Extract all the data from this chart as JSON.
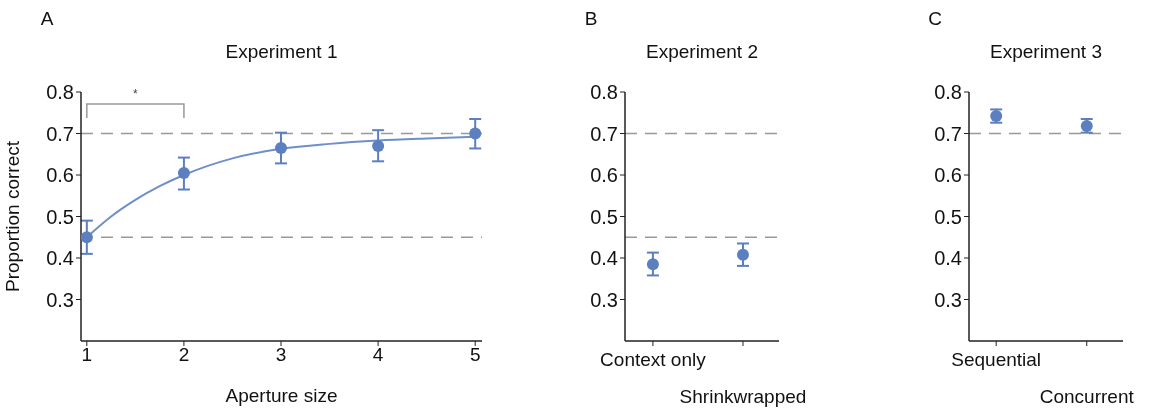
{
  "chart_data": [
    {
      "type": "scatter",
      "title": "Experiment 1",
      "xlabel": "Aperture size",
      "ylabel": "Proportion correct",
      "x": [
        1,
        2,
        3,
        4,
        5
      ],
      "xlim": [
        0.94,
        5.07
      ],
      "xticks": [
        1,
        2,
        3,
        4,
        5
      ],
      "ylim": [
        0.2,
        0.8
      ],
      "yticks": [
        0.3,
        0.4,
        0.5,
        0.6,
        0.7,
        0.8
      ],
      "series": [
        {
          "marker": "circle",
          "color": "#5b7fbf",
          "values": [
            0.45,
            0.605,
            0.665,
            0.67,
            0.7
          ],
          "errors": [
            [
              0.41,
              0.49
            ],
            [
              0.565,
              0.642
            ],
            [
              0.628,
              0.702
            ],
            [
              0.633,
              0.708
            ],
            [
              0.664,
              0.735
            ]
          ]
        },
        {
          "type": "line",
          "color": "#6f8fc8",
          "x": [
            1,
            1.25,
            1.5,
            1.75,
            2,
            2.5,
            3,
            3.5,
            4,
            4.5,
            5
          ],
          "values": [
            0.45,
            0.5,
            0.54,
            0.573,
            0.6,
            0.64,
            0.663,
            0.675,
            0.683,
            0.688,
            0.692
          ]
        }
      ],
      "ref_lines": [
        {
          "axis": "y",
          "value": 0.45,
          "color": "#999999",
          "line_style": "dashed"
        },
        {
          "axis": "y",
          "value": 0.7,
          "color": "#999999",
          "line_style": "dashed"
        }
      ],
      "annotations": [
        "A",
        "*"
      ]
    },
    {
      "type": "scatter",
      "title": "Experiment 2",
      "marker": "circle",
      "categories": [
        "Context only",
        "Shrinkwrapped"
      ],
      "ylim": [
        0.2,
        0.8
      ],
      "yticks": [
        0.3,
        0.4,
        0.5,
        0.6,
        0.7,
        0.8
      ],
      "series": [
        {
          "color": "#5b7fbf",
          "values": [
            0.385,
            0.408
          ],
          "errors": [
            [
              0.358,
              0.413
            ],
            [
              0.381,
              0.435
            ]
          ]
        }
      ],
      "ref_lines": [
        {
          "axis": "y",
          "value": 0.45,
          "color": "#999999",
          "line_style": "dashed"
        },
        {
          "axis": "y",
          "value": 0.7,
          "color": "#999999",
          "line_style": "dashed"
        }
      ],
      "annotations": [
        "B"
      ]
    },
    {
      "type": "scatter",
      "title": "Experiment 3",
      "marker": "circle",
      "categories": [
        "Sequential",
        "Concurrent"
      ],
      "ylim": [
        0.2,
        0.8
      ],
      "yticks": [
        0.3,
        0.4,
        0.5,
        0.6,
        0.7,
        0.8
      ],
      "series": [
        {
          "color": "#5b7fbf",
          "values": [
            0.742,
            0.718
          ],
          "errors": [
            [
              0.726,
              0.758
            ],
            [
              0.702,
              0.735
            ]
          ]
        }
      ],
      "ref_lines": [
        {
          "axis": "y",
          "value": 0.7,
          "color": "#999999",
          "line_style": "dashed"
        }
      ],
      "annotations": [
        "C"
      ]
    }
  ]
}
